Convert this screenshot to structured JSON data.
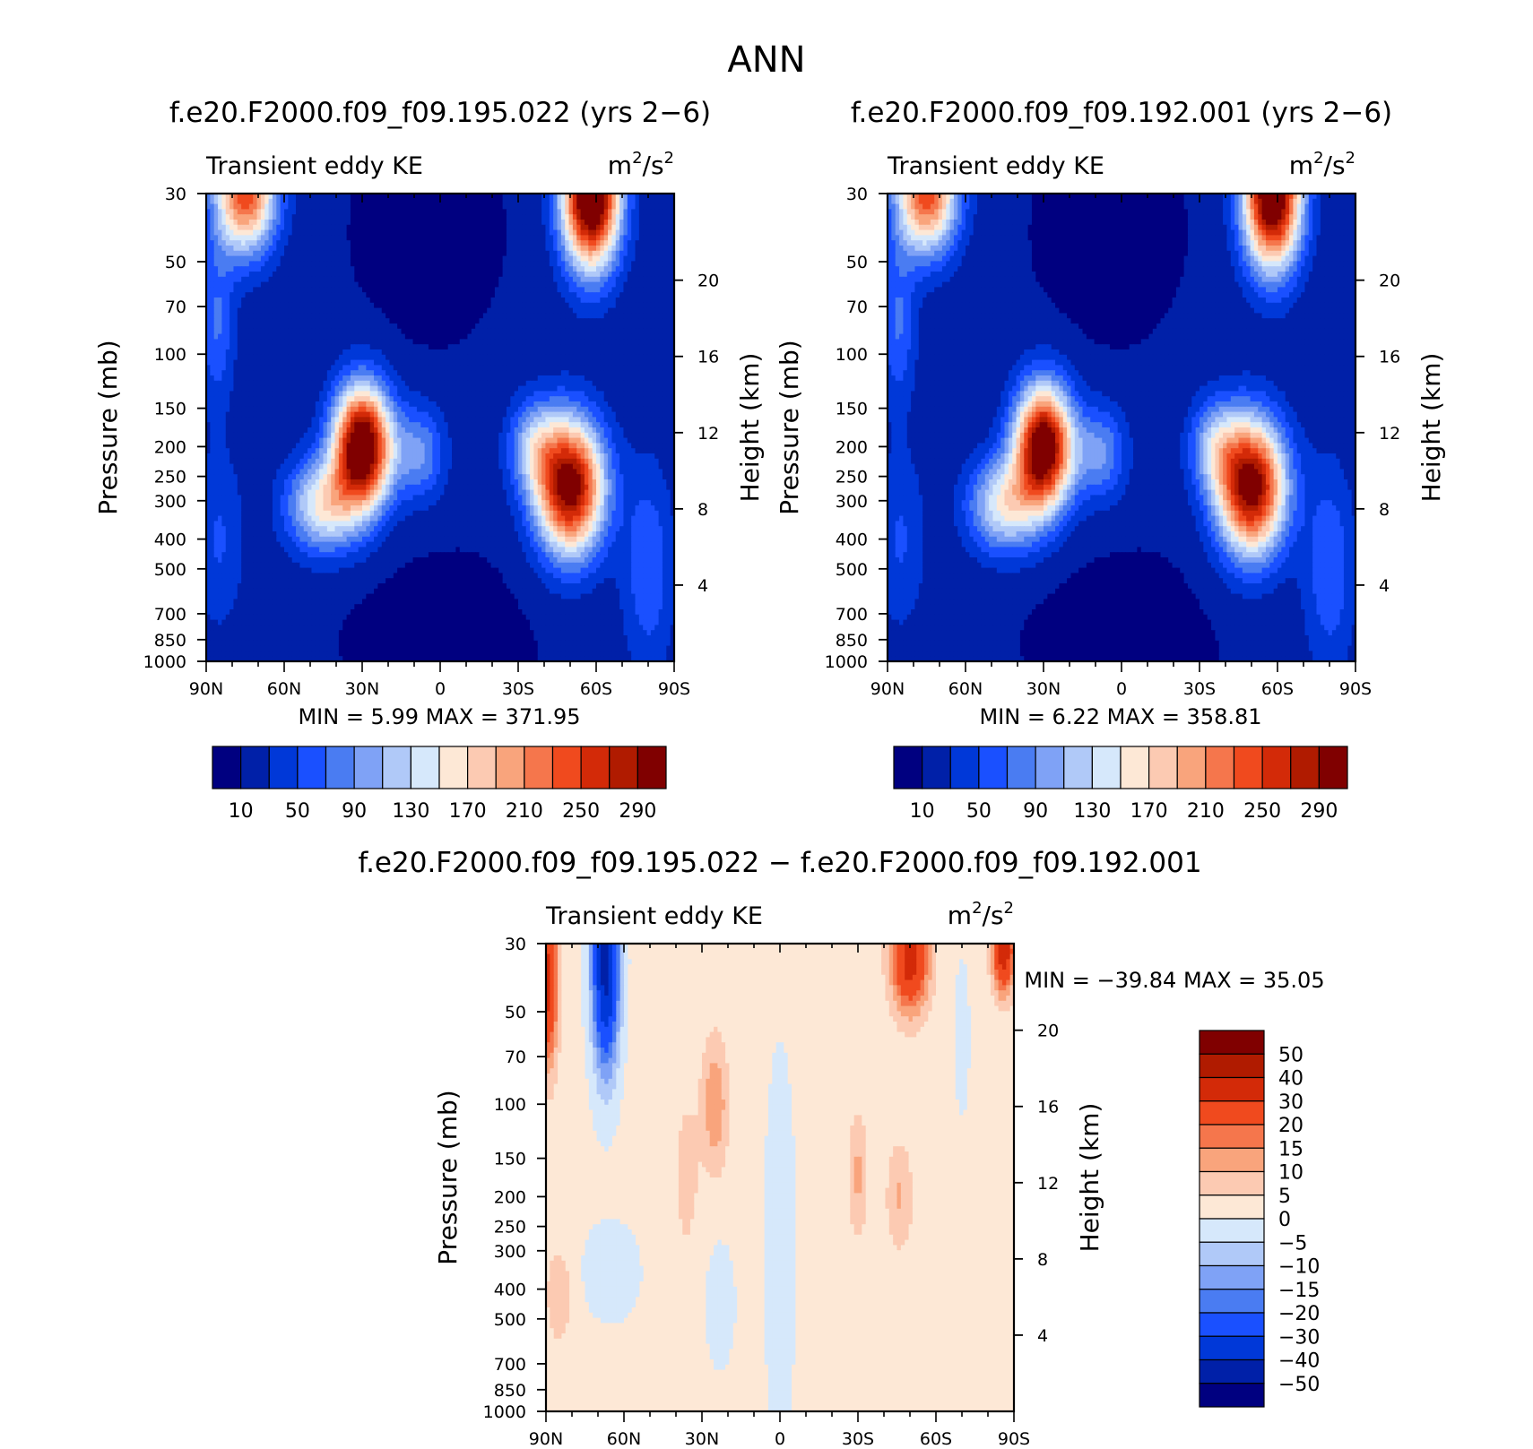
{
  "main_title": "ANN",
  "colors": {
    "abs_palette": [
      "#000080",
      "#0020a8",
      "#0038d8",
      "#1a50ff",
      "#4a7cf2",
      "#7fa2f6",
      "#b0c9f8",
      "#d6e8fb",
      "#fde8d6",
      "#fccab2",
      "#f9a47c",
      "#f5764c",
      "#f04a1e",
      "#d32a08",
      "#b01b00",
      "#800000"
    ],
    "diff_palette": [
      "#000080",
      "#0020a8",
      "#0038d8",
      "#1a50ff",
      "#4a7cf2",
      "#7fa2f6",
      "#b0c9f8",
      "#d6e8fb",
      "#fde8d6",
      "#fccab2",
      "#f9a47c",
      "#f5764c",
      "#f04a1e",
      "#d32a08",
      "#b01b00",
      "#800000"
    ]
  },
  "panels": {
    "left": {
      "title": "f.e20.F2000.f09_f09.195.022 (yrs 2−6)",
      "field": "Transient eddy KE",
      "units_base": "m",
      "units_sup1": "2",
      "units_mid": "/s",
      "units_sup2": "2",
      "stats": "MIN =    5.99   MAX =  371.95"
    },
    "right": {
      "title": "f.e20.F2000.f09_f09.192.001 (yrs 2−6)",
      "field": "Transient eddy KE",
      "units_base": "m",
      "units_sup1": "2",
      "units_mid": "/s",
      "units_sup2": "2",
      "stats": "MIN =    6.22   MAX =  358.81"
    },
    "diff": {
      "title": "f.e20.F2000.f09_f09.195.022 − f.e20.F2000.f09_f09.192.001",
      "field": "Transient eddy KE",
      "units_base": "m",
      "units_sup1": "2",
      "units_mid": "/s",
      "units_sup2": "2",
      "stats": "MIN = −39.84   MAX =   35.05"
    }
  },
  "chart_data": [
    {
      "type": "heatmap",
      "title": "f.e20.F2000.f09_f09.195.022 (yrs 2−6)",
      "ylabel": "Pressure (mb)",
      "ylabel_right": "Height (km)",
      "x_ticks": [
        "90N",
        "60N",
        "30N",
        "0",
        "30S",
        "60S",
        "90S"
      ],
      "y_ticks": [
        "30",
        "50",
        "70",
        "100",
        "150",
        "200",
        "250",
        "300",
        "400",
        "500",
        "700",
        "850",
        "1000"
      ],
      "y_ticks_right": [
        "4",
        "8",
        "12",
        "16",
        "20"
      ],
      "min": 5.99,
      "max": 371.95,
      "colorbar_labels": [
        "10",
        "50",
        "90",
        "130",
        "170",
        "210",
        "250",
        "290"
      ],
      "features": [
        {
          "lat": 30,
          "p": 200,
          "value": 340
        },
        {
          "lat": -50,
          "p": 270,
          "value": 300
        },
        {
          "lat": -58,
          "p": 30,
          "value": 372
        },
        {
          "lat": 75,
          "p": 30,
          "value": 230
        }
      ]
    },
    {
      "type": "heatmap",
      "title": "f.e20.F2000.f09_f09.192.001 (yrs 2−6)",
      "ylabel": "Pressure (mb)",
      "ylabel_right": "Height (km)",
      "x_ticks": [
        "90N",
        "60N",
        "30N",
        "0",
        "30S",
        "60S",
        "90S"
      ],
      "y_ticks": [
        "30",
        "50",
        "70",
        "100",
        "150",
        "200",
        "250",
        "300",
        "400",
        "500",
        "700",
        "850",
        "1000"
      ],
      "y_ticks_right": [
        "4",
        "8",
        "12",
        "16",
        "20"
      ],
      "min": 6.22,
      "max": 358.81,
      "colorbar_labels": [
        "10",
        "50",
        "90",
        "130",
        "170",
        "210",
        "250",
        "290"
      ],
      "features": [
        {
          "lat": 30,
          "p": 200,
          "value": 330
        },
        {
          "lat": -48,
          "p": 270,
          "value": 285
        },
        {
          "lat": -58,
          "p": 30,
          "value": 359
        },
        {
          "lat": 75,
          "p": 30,
          "value": 230
        }
      ]
    },
    {
      "type": "heatmap",
      "title": "f.e20.F2000.f09_f09.195.022 − f.e20.F2000.f09_f09.192.001",
      "ylabel": "Pressure (mb)",
      "ylabel_right": "Height (km)",
      "x_ticks": [
        "90N",
        "60N",
        "30N",
        "0",
        "30S",
        "60S",
        "90S"
      ],
      "y_ticks": [
        "30",
        "50",
        "70",
        "100",
        "150",
        "200",
        "250",
        "300",
        "400",
        "500",
        "700",
        "850",
        "1000"
      ],
      "y_ticks_right": [
        "4",
        "8",
        "12",
        "16",
        "20"
      ],
      "min": -39.84,
      "max": 35.05,
      "colorbar_labels": [
        "50",
        "40",
        "30",
        "20",
        "15",
        "10",
        "5",
        "0",
        "−5",
        "−10",
        "−15",
        "−20",
        "−30",
        "−40",
        "−50"
      ],
      "features": [
        {
          "lat": 67,
          "p": 30,
          "value": -40
        },
        {
          "lat": -50,
          "p": 30,
          "value": 30
        },
        {
          "lat": -85,
          "p": 30,
          "value": 35
        },
        {
          "lat": 88,
          "p": 50,
          "value": 30
        },
        {
          "lat": 25,
          "p": 100,
          "value": 12
        }
      ]
    }
  ]
}
